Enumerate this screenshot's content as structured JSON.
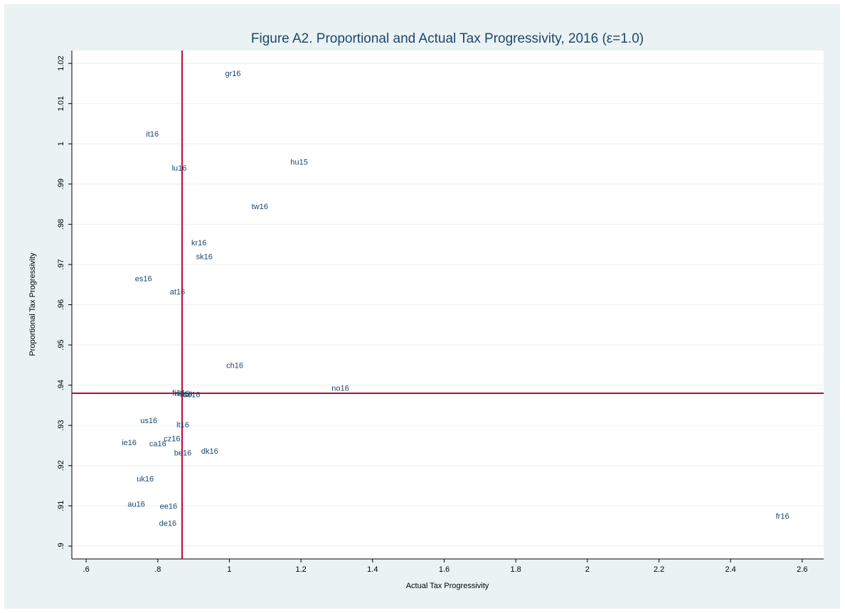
{
  "chart_data": {
    "type": "scatter",
    "title": "Figure A2. Proportional and Actual Tax Progressivity, 2016 (ε=1.0)",
    "xlabel": "Actual Tax Progressivity",
    "ylabel": "Proportional Tax Progressivity",
    "xlim": [
      0.56,
      2.66
    ],
    "ylim": [
      0.8968,
      1.0232
    ],
    "xticks": [
      0.6,
      0.8,
      1.0,
      1.2,
      1.4,
      1.6,
      1.8,
      2.0,
      2.2,
      2.4,
      2.6
    ],
    "xtick_labels": [
      ".6",
      ".8",
      "1",
      "1.2",
      "1.4",
      "1.6",
      "1.8",
      "2",
      "2.2",
      "2.4",
      "2.6"
    ],
    "yticks": [
      0.9,
      0.91,
      0.92,
      0.93,
      0.94,
      0.95,
      0.96,
      0.97,
      0.98,
      0.99,
      1.0,
      1.01,
      1.02
    ],
    "ytick_labels": [
      ".9",
      ".91",
      ".92",
      ".93",
      ".94",
      ".95",
      ".96",
      ".97",
      ".98",
      ".99",
      "1",
      "1.01",
      "1.02"
    ],
    "grid": "horizontal",
    "reference_lines": {
      "x": 0.868,
      "y": 0.938
    },
    "points": [
      {
        "label": "gr16",
        "x": 1.01,
        "y": 1.0175
      },
      {
        "label": "it16",
        "x": 0.785,
        "y": 1.0025
      },
      {
        "label": "hu15",
        "x": 1.195,
        "y": 0.9955
      },
      {
        "label": "lu16",
        "x": 0.86,
        "y": 0.994
      },
      {
        "label": "tw16",
        "x": 1.085,
        "y": 0.9845
      },
      {
        "label": "kr16",
        "x": 0.915,
        "y": 0.9755
      },
      {
        "label": "sk16",
        "x": 0.93,
        "y": 0.972
      },
      {
        "label": "es16",
        "x": 0.76,
        "y": 0.9665
      },
      {
        "label": "at16",
        "x": 0.855,
        "y": 0.9633
      },
      {
        "label": "ch16",
        "x": 1.015,
        "y": 0.945
      },
      {
        "label": "no16",
        "x": 1.31,
        "y": 0.9393
      },
      {
        "label": "fi16",
        "x": 0.858,
        "y": 0.9382
      },
      {
        "label": "nl16",
        "x": 0.868,
        "y": 0.938
      },
      {
        "label": "il16",
        "x": 0.88,
        "y": 0.9378
      },
      {
        "label": "se16",
        "x": 0.895,
        "y": 0.9377
      },
      {
        "label": "us16",
        "x": 0.775,
        "y": 0.9313
      },
      {
        "label": "lt16",
        "x": 0.87,
        "y": 0.9302
      },
      {
        "label": "cz16",
        "x": 0.84,
        "y": 0.9268
      },
      {
        "label": "ie16",
        "x": 0.72,
        "y": 0.9258
      },
      {
        "label": "ca16",
        "x": 0.8,
        "y": 0.9255
      },
      {
        "label": "dk16",
        "x": 0.945,
        "y": 0.9237
      },
      {
        "label": "be16",
        "x": 0.87,
        "y": 0.9232
      },
      {
        "label": "uk16",
        "x": 0.765,
        "y": 0.9168
      },
      {
        "label": "au16",
        "x": 0.74,
        "y": 0.9105
      },
      {
        "label": "ee16",
        "x": 0.83,
        "y": 0.91
      },
      {
        "label": "de16",
        "x": 0.828,
        "y": 0.9057
      },
      {
        "label": "fr16",
        "x": 2.545,
        "y": 0.9075
      }
    ],
    "colors": {
      "background": "#eaf2f3",
      "plot_background": "#ffffff",
      "grid": "#eaf2f3",
      "reference_line": "#c10534",
      "marker_label": "#1a476f",
      "title": "#1a476f"
    }
  }
}
